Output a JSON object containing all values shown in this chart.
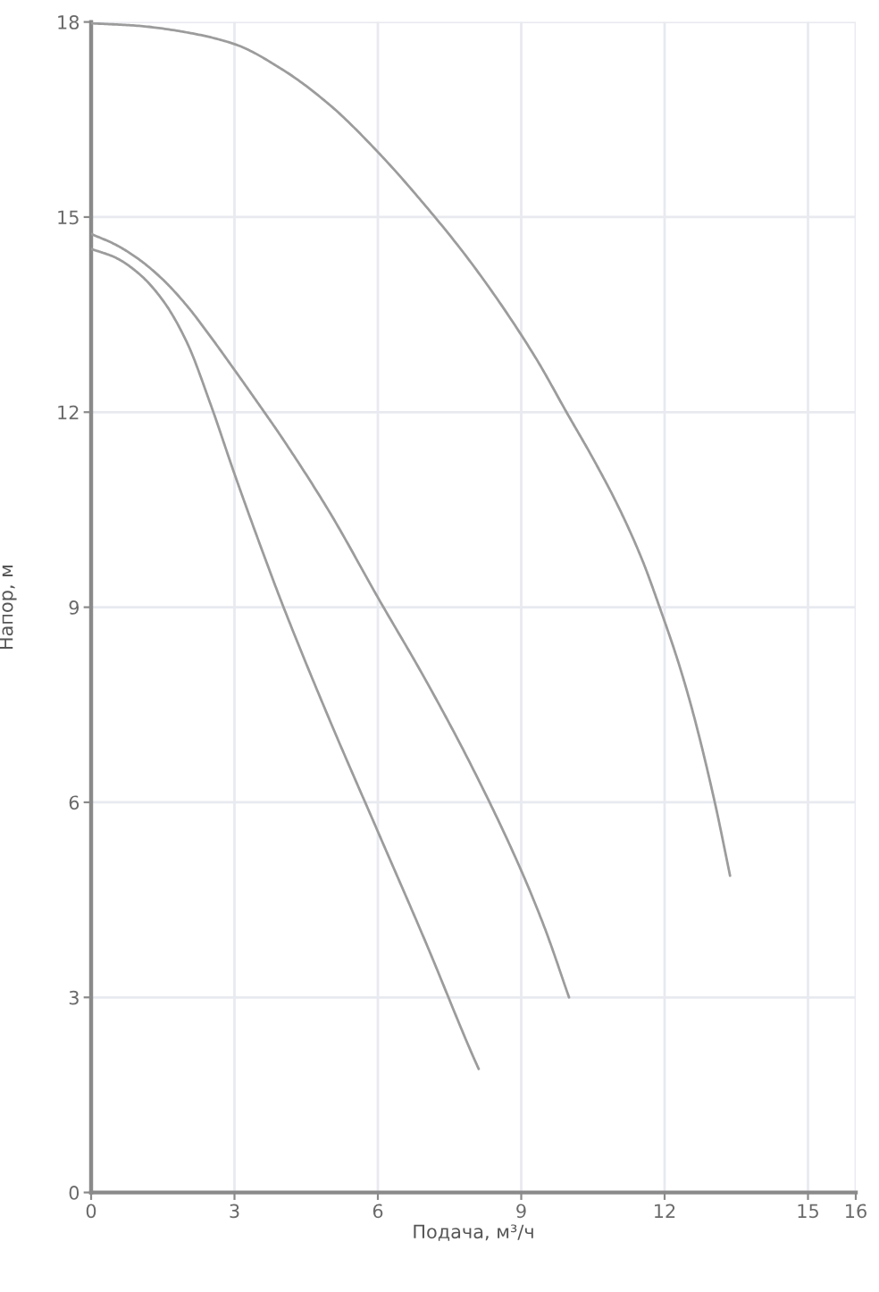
{
  "chart_data": {
    "type": "line",
    "xlabel": "Подача, м³/ч",
    "ylabel": "Напор, м",
    "series": [
      {
        "color": "#9c9c9c",
        "x": [
          0,
          1,
          2,
          3,
          4,
          5,
          6,
          7,
          8,
          9.29,
          9.97,
          10.53,
          11.03,
          11.53,
          11.9,
          12.28,
          12.59,
          13.05,
          13.37
        ],
        "values": [
          17.98,
          17.94,
          17.84,
          17.66,
          17.27,
          16.72,
          16.0,
          15.17,
          14.25,
          12.85,
          11.97,
          11.25,
          10.55,
          9.73,
          8.99,
          8.17,
          7.39,
          6.0,
          4.87
        ]
      },
      {
        "color": "#9c9c9c",
        "x": [
          0,
          0.5,
          1,
          1.5,
          2,
          2.5,
          3,
          3.5,
          4,
          5,
          6,
          7,
          8,
          9,
          9.5,
          10
        ],
        "values": [
          14.74,
          14.58,
          14.35,
          14.04,
          13.64,
          13.16,
          12.65,
          12.13,
          11.6,
          10.45,
          9.15,
          7.88,
          6.5,
          4.95,
          4.05,
          3.0
        ]
      },
      {
        "color": "#9c9c9c",
        "x": [
          0,
          0.5,
          1,
          1.5,
          2,
          2.5,
          3,
          3.5,
          4,
          5,
          6,
          7,
          8,
          8.11
        ],
        "values": [
          14.51,
          14.38,
          14.13,
          13.72,
          13.08,
          12.12,
          11.05,
          10.03,
          9.05,
          7.25,
          5.55,
          3.85,
          2.08,
          1.9
        ]
      }
    ],
    "xlim": [
      0,
      16
    ],
    "xticks": [
      0,
      3,
      6,
      9,
      12,
      15,
      16
    ],
    "ylim": [
      0,
      18
    ],
    "yticks": [
      0,
      3,
      6,
      9,
      12,
      15,
      18
    ],
    "grid": true
  }
}
